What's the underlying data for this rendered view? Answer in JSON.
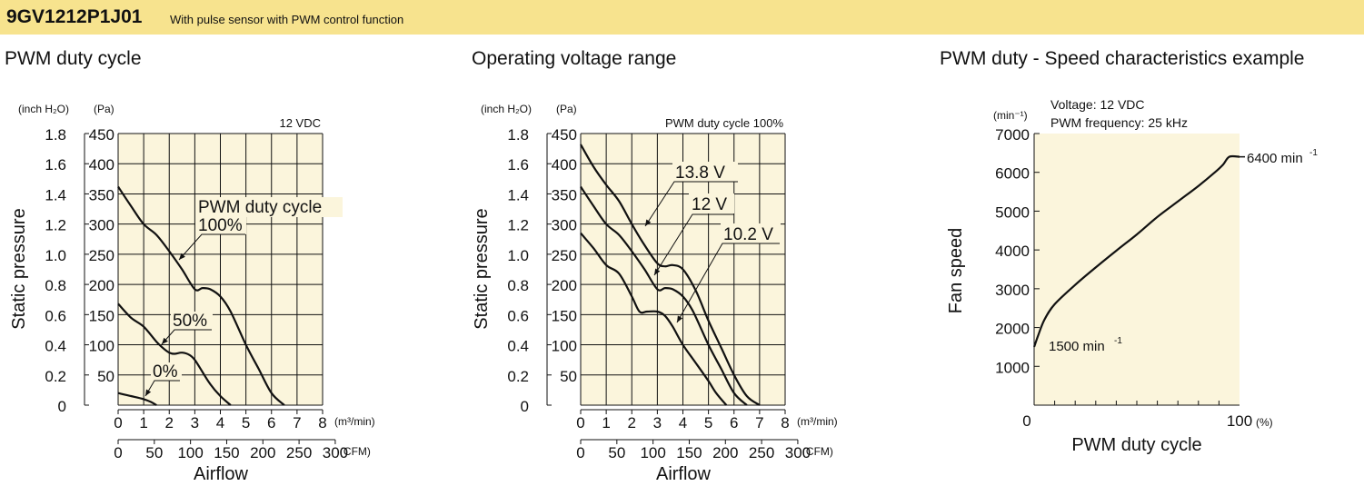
{
  "header": {
    "model": "9GV1212P1J01",
    "description": "With pulse sensor with PWM control function",
    "background": "#f7e38e"
  },
  "plot_background": "#fbf5dc",
  "chart_data": [
    {
      "type": "line",
      "title": "PWM duty cycle",
      "condition": "12 VDC",
      "ylabel": "Static pressure",
      "xlabel": "Airflow",
      "y_units": [
        "(inch H₂O)",
        "(Pa)"
      ],
      "x_units": [
        "(m³/min)",
        "(CFM)"
      ],
      "y_ticks_pa": [
        "450",
        "400",
        "350",
        "300",
        "250",
        "200",
        "150",
        "100",
        "50"
      ],
      "y_ticks_inch": [
        "1.8",
        "1.6",
        "1.4",
        "1.2",
        "1.0",
        "0.8",
        "0.6",
        "0.4",
        "0.2",
        "0"
      ],
      "x_ticks_m3": [
        "0",
        "1",
        "2",
        "3",
        "4",
        "5",
        "6",
        "7",
        "8"
      ],
      "x_ticks_cfm": [
        "0",
        "50",
        "100",
        "150",
        "200",
        "250",
        "300"
      ],
      "xlim": [
        0,
        8
      ],
      "ylim": [
        0,
        450
      ],
      "grid": true,
      "legend_label": "PWM duty cycle",
      "series": [
        {
          "name": "100%",
          "x": [
            0,
            0.5,
            1,
            1.5,
            2,
            2.5,
            3,
            3.3,
            3.6,
            4,
            4.4,
            5,
            5.5,
            6,
            6.5
          ],
          "y": [
            362,
            330,
            300,
            282,
            255,
            225,
            192,
            194,
            192,
            180,
            155,
            100,
            60,
            20,
            0
          ]
        },
        {
          "name": "50%",
          "x": [
            0,
            0.5,
            1,
            1.5,
            1.8,
            2,
            2.2,
            2.5,
            2.8,
            3,
            3.3,
            3.6,
            4,
            4.4
          ],
          "y": [
            168,
            145,
            130,
            105,
            93,
            87,
            85,
            87,
            83,
            75,
            55,
            35,
            15,
            0
          ]
        },
        {
          "name": "0%",
          "x": [
            0,
            0.5,
            1,
            1.3,
            1.5
          ],
          "y": [
            20,
            15,
            10,
            5,
            0
          ]
        }
      ]
    },
    {
      "type": "line",
      "title": "Operating voltage range",
      "condition": "PWM duty cycle 100%",
      "ylabel": "Static pressure",
      "xlabel": "Airflow",
      "y_units": [
        "(inch H₂O)",
        "(Pa)"
      ],
      "x_units": [
        "(m³/min)",
        "(CFM)"
      ],
      "y_ticks_pa": [
        "450",
        "400",
        "350",
        "300",
        "250",
        "200",
        "150",
        "100",
        "50"
      ],
      "y_ticks_inch": [
        "1.8",
        "1.6",
        "1.4",
        "1.2",
        "1.0",
        "0.8",
        "0.6",
        "0.4",
        "0.2",
        "0"
      ],
      "x_ticks_m3": [
        "0",
        "1",
        "2",
        "3",
        "4",
        "5",
        "6",
        "7",
        "8"
      ],
      "x_ticks_cfm": [
        "0",
        "50",
        "100",
        "150",
        "200",
        "250",
        "300"
      ],
      "xlim": [
        0,
        8
      ],
      "ylim": [
        0,
        450
      ],
      "grid": true,
      "series": [
        {
          "name": "13.8 V",
          "x": [
            0,
            0.5,
            1,
            1.5,
            2,
            2.5,
            3,
            3.3,
            3.6,
            4,
            4.5,
            5,
            5.5,
            6,
            6.5,
            7
          ],
          "y": [
            432,
            395,
            365,
            338,
            300,
            265,
            235,
            230,
            232,
            225,
            190,
            140,
            95,
            50,
            15,
            0
          ]
        },
        {
          "name": "12 V",
          "x": [
            0,
            0.5,
            1,
            1.5,
            2,
            2.5,
            3,
            3.3,
            3.6,
            4,
            4.4,
            5,
            5.5,
            6,
            6.5
          ],
          "y": [
            362,
            330,
            300,
            282,
            255,
            225,
            192,
            194,
            192,
            180,
            155,
            100,
            60,
            20,
            0
          ]
        },
        {
          "name": "10.2 V",
          "x": [
            0,
            0.5,
            1,
            1.5,
            2,
            2.3,
            2.6,
            3,
            3.3,
            3.6,
            4,
            4.5,
            5,
            5.3,
            5.7
          ],
          "y": [
            285,
            260,
            232,
            218,
            180,
            155,
            155,
            155,
            148,
            130,
            100,
            70,
            40,
            20,
            0
          ]
        }
      ]
    },
    {
      "type": "line",
      "title": "PWM duty - Speed characteristics example",
      "conditions": [
        "Voltage: 12 VDC",
        "PWM frequency: 25 kHz"
      ],
      "ylabel": "Fan speed",
      "xlabel": "PWM duty cycle",
      "y_unit": "(min⁻¹)",
      "x_unit": "(%)",
      "y_ticks": [
        "7000",
        "6000",
        "5000",
        "4000",
        "3000",
        "2000",
        "1000"
      ],
      "x_ticks": [
        "0",
        "100"
      ],
      "xlim": [
        0,
        100
      ],
      "ylim": [
        0,
        7000
      ],
      "grid": false,
      "series": [
        {
          "name": "",
          "x": [
            0,
            2,
            5,
            10,
            20,
            30,
            40,
            50,
            60,
            70,
            80,
            88,
            92,
            95,
            100
          ],
          "y": [
            1500,
            1800,
            2200,
            2600,
            3100,
            3550,
            3980,
            4400,
            4850,
            5250,
            5650,
            6000,
            6200,
            6400,
            6400
          ]
        }
      ],
      "annotations": [
        {
          "text": "1500 min",
          "sup": "-1",
          "x": 0,
          "y": 1500
        },
        {
          "text": "6400 min",
          "sup": "-1",
          "x": 100,
          "y": 6400
        }
      ]
    }
  ]
}
